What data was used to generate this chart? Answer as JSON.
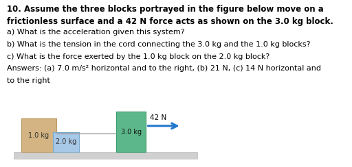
{
  "title_line1": "10. Assume the three blocks portrayed in the figure below move on a",
  "title_line2": "frictionless surface and a 42 N force acts as shown on the 3.0 kg block.",
  "q1": "a) What is the acceleration given this system?",
  "q2": "b) What is the tension in the cord connecting the 3.0 kg and the 1.0 kg blocks?",
  "q3": "c) What is the force exerted by the 1.0 kg block on the 2.0 kg block?",
  "ans_line1": "Answers: (a) 7.0 m/s² horizontal and to the right, (b) 21 N, (c) 14 N horizontal and",
  "ans_line2": "to the right",
  "background_color": "#ffffff",
  "block1_color": "#d4b483",
  "block1_edge": "#b89860",
  "block2_color": "#a8c8e8",
  "block2_edge": "#7aabcc",
  "block3_color": "#5cb88a",
  "block3_edge": "#3a9a6a",
  "surface_color": "#d0d0d0",
  "surface_edge": "#bbbbbb",
  "arrow_color": "#2277cc",
  "text_color": "#000000",
  "block1_label": "1.0 kg",
  "block2_label": "2.0 kg",
  "block3_label": "3.0 kg",
  "force_label": "42 N",
  "fontsize_title": 8.5,
  "fontsize_body": 8.0,
  "fontsize_block": 7.0
}
